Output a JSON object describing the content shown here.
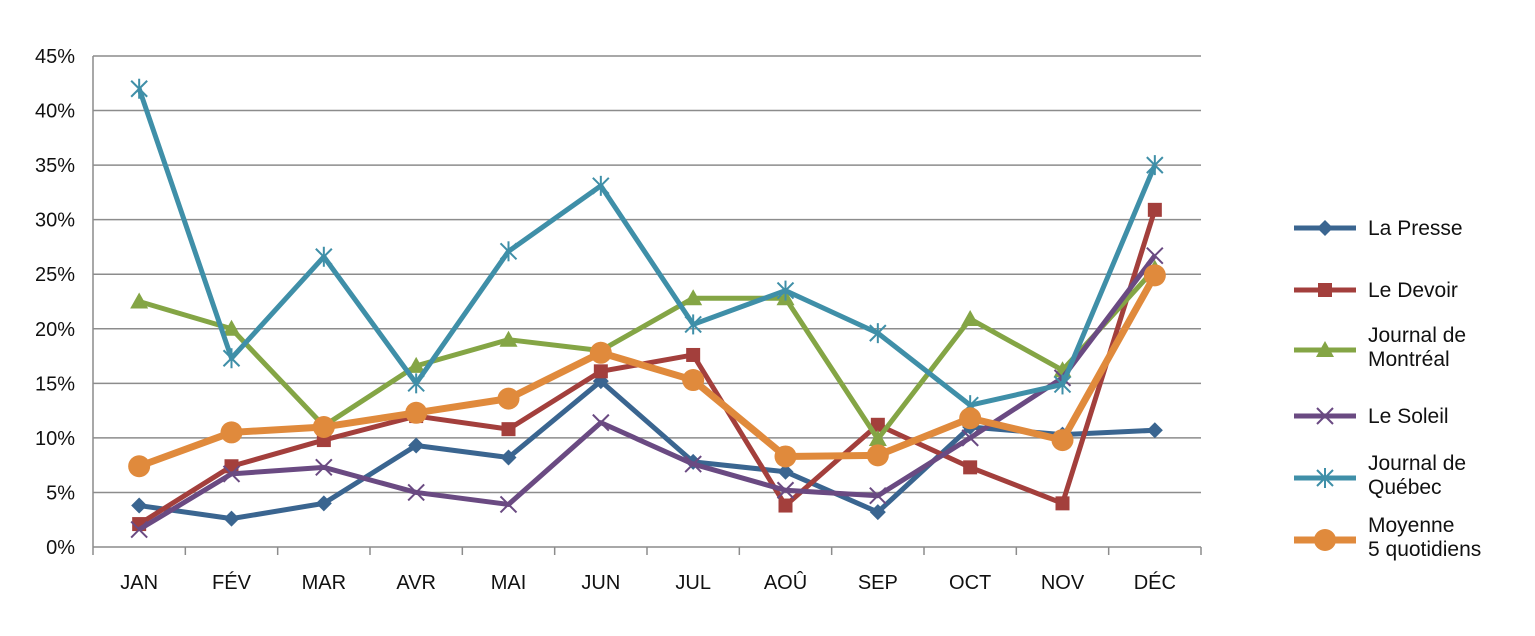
{
  "chart_data": {
    "type": "line",
    "categories": [
      "JAN",
      "FÉV",
      "MAR",
      "AVR",
      "MAI",
      "JUN",
      "JUL",
      "AOÛ",
      "SEP",
      "OCT",
      "NOV",
      "DÉC"
    ],
    "ylim": [
      0,
      45
    ],
    "yticks": [
      "0%",
      "5%",
      "10%",
      "15%",
      "20%",
      "25%",
      "30%",
      "35%",
      "40%",
      "45%"
    ],
    "grid": true,
    "legend_position": "right",
    "series": [
      {
        "name": "La Presse",
        "color": "#3a6590",
        "marker": "diamond",
        "values": [
          3.8,
          2.6,
          4.0,
          9.3,
          8.2,
          15.2,
          7.8,
          6.9,
          3.2,
          11.0,
          10.3,
          10.7
        ]
      },
      {
        "name": "Le Devoir",
        "color": "#a33f3c",
        "marker": "square",
        "values": [
          2.1,
          7.4,
          9.8,
          12.0,
          10.8,
          16.1,
          17.6,
          3.8,
          11.2,
          7.3,
          4.0,
          30.9
        ]
      },
      {
        "name": "Journal de Montréal",
        "color": "#84a545",
        "marker": "triangle",
        "values": [
          22.5,
          20.0,
          11.1,
          16.6,
          19.0,
          18.0,
          22.8,
          22.8,
          9.9,
          20.9,
          16.2,
          25.5
        ]
      },
      {
        "name": "Le Soleil",
        "color": "#6a4a82",
        "marker": "x",
        "values": [
          1.6,
          6.7,
          7.3,
          5.0,
          3.9,
          11.4,
          7.6,
          5.2,
          4.7,
          10.0,
          15.5,
          26.7
        ]
      },
      {
        "name": "Journal de Québec",
        "color": "#3f8fa8",
        "marker": "star",
        "values": [
          42.0,
          17.3,
          26.6,
          15.0,
          27.1,
          33.1,
          20.4,
          23.5,
          19.6,
          13.0,
          14.9,
          35.0
        ]
      },
      {
        "name": "Moyenne 5 quotidiens",
        "color": "#e08a3c",
        "marker": "circle",
        "values": [
          7.4,
          10.5,
          11.0,
          12.3,
          13.6,
          17.8,
          15.3,
          8.3,
          8.4,
          11.8,
          9.8,
          24.9
        ]
      }
    ]
  }
}
